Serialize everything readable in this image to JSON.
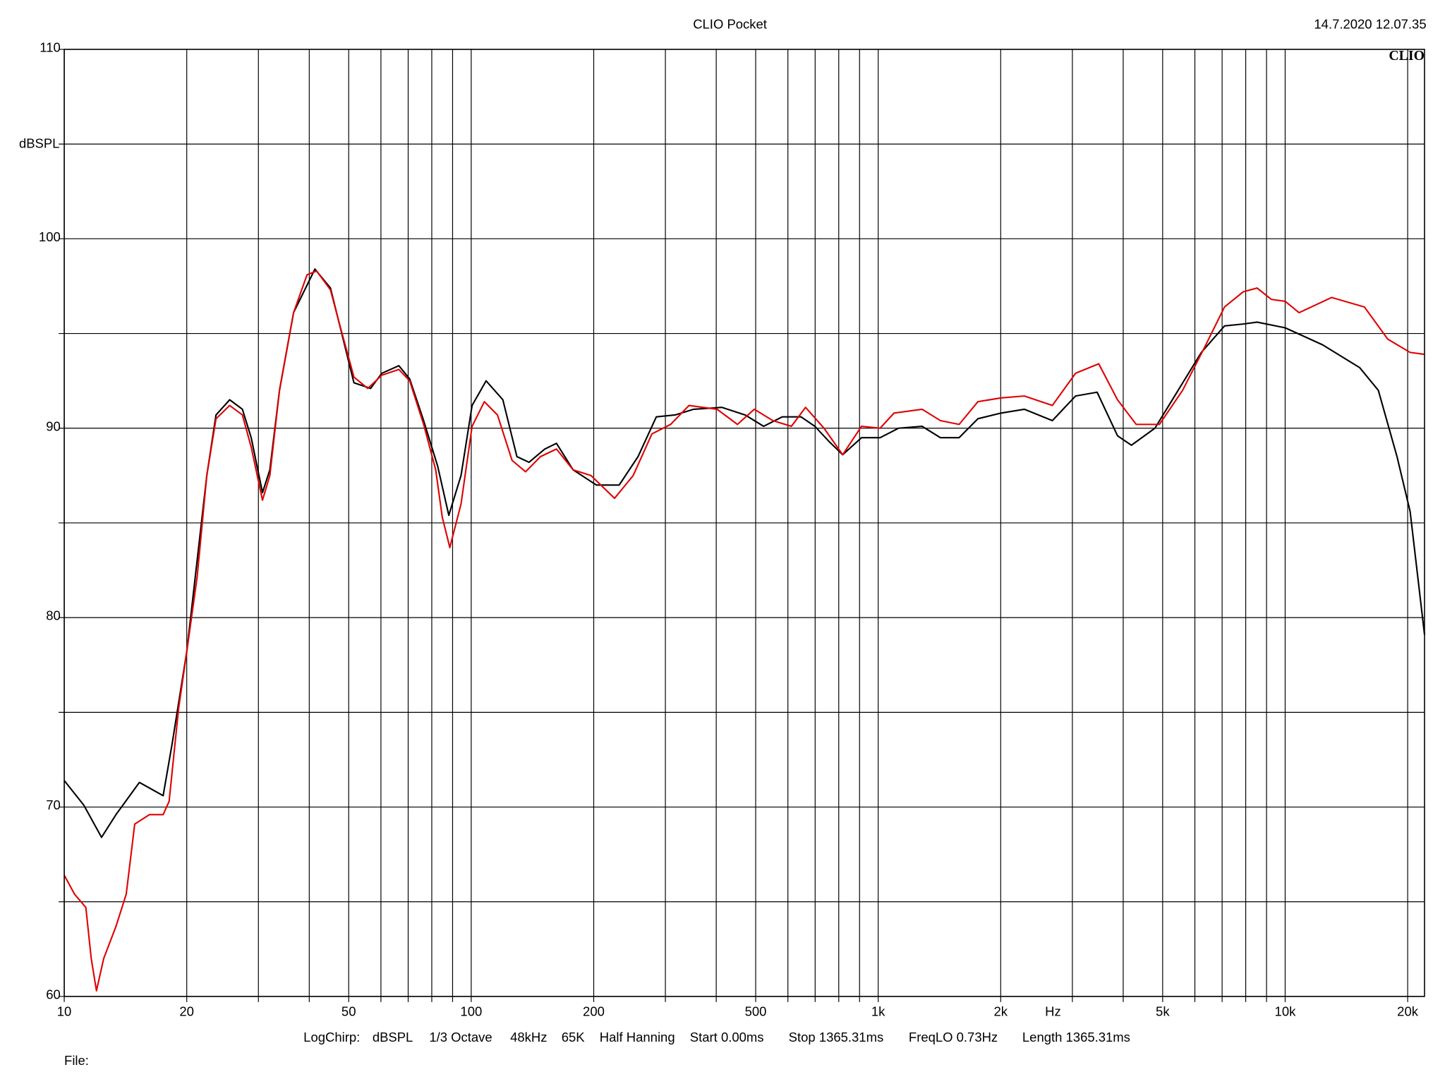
{
  "chart_data": {
    "type": "line",
    "title": "CLIO Pocket",
    "timestamp": "14.7.2020 12.07.35",
    "logo": "CLIO",
    "ylabel": "dBSPL",
    "xlabel": "Hz",
    "footer": [
      "LogChirp:",
      "dBSPL",
      "1/3 Octave",
      "48kHz",
      "65K",
      "Half Hanning",
      "Start 0.00ms",
      "Stop 1365.31ms",
      "FreqLO 0.73Hz",
      "Length 1365.31ms"
    ],
    "file_label": "File:",
    "xscale": "log",
    "grid": true,
    "xlim": [
      10,
      22000
    ],
    "ylim": [
      60,
      110
    ],
    "xticks": [
      10,
      20,
      50,
      100,
      200,
      500,
      {
        "value": 1000,
        "label": "1k"
      },
      {
        "value": 2000,
        "label": "2k"
      },
      {
        "value": 5000,
        "label": "5k"
      },
      {
        "value": 10000,
        "label": "10k"
      },
      {
        "value": 20000,
        "label": "20k"
      }
    ],
    "x_minor_ticks": [
      30,
      40,
      60,
      70,
      80,
      90,
      300,
      400,
      600,
      700,
      800,
      900,
      3000,
      4000,
      6000,
      7000,
      8000,
      9000
    ],
    "yticks": [
      60,
      70,
      80,
      90,
      100,
      110
    ],
    "y_minor_ticks": [
      65,
      75,
      85,
      95,
      105
    ],
    "series": [
      {
        "color": "#000000",
        "x": [
          10,
          11.17,
          12.35,
          13.4,
          15.3,
          17.5,
          18.4,
          20,
          22.4,
          23.6,
          25.5,
          27.4,
          28.8,
          30.7,
          32,
          33.8,
          36.6,
          41.3,
          45.1,
          51.5,
          56.6,
          60.3,
          66.4,
          70.6,
          76.4,
          82.7,
          88.1,
          94.4,
          100.5,
          108.8,
          119.6,
          129.5,
          138.7,
          151.6,
          162,
          178,
          203,
          231,
          257,
          285,
          317,
          352,
          413,
          471,
          523,
          581,
          646,
          699,
          757,
          818,
          910,
          1011,
          1122,
          1282,
          1422,
          1581,
          1758,
          2005,
          2286,
          2679,
          3055,
          3451,
          3873,
          4190,
          4786,
          5458,
          6223,
          7096,
          7889,
          8531,
          10000,
          12360,
          15240,
          16940,
          18830,
          20280,
          22000
        ],
        "values": [
          71.4,
          70.1,
          68.4,
          69.6,
          71.3,
          70.6,
          73.3,
          78.2,
          87.5,
          90.7,
          91.5,
          91,
          89.5,
          86.6,
          87.8,
          92,
          96.1,
          98.4,
          97.4,
          92.4,
          92.1,
          92.9,
          93.3,
          92.6,
          90.4,
          88,
          85.4,
          87.5,
          91.2,
          92.5,
          91.5,
          88.5,
          88.2,
          88.9,
          89.2,
          87.8,
          87,
          87,
          88.5,
          90.6,
          90.7,
          91,
          91.1,
          90.7,
          90.1,
          90.6,
          90.6,
          90.1,
          89.3,
          88.6,
          89.5,
          89.5,
          90,
          90.1,
          89.5,
          89.5,
          90.5,
          90.8,
          91,
          90.4,
          91.7,
          91.9,
          89.6,
          89.1,
          90,
          92,
          94,
          95.4,
          95.5,
          95.6,
          95.3,
          94.4,
          93.2,
          92,
          88.5,
          85.6,
          79.1
        ]
      },
      {
        "color": "#e00000",
        "x": [
          10,
          10.6,
          11.3,
          11.65,
          12,
          12.5,
          13.4,
          14.2,
          14.9,
          16.2,
          17.5,
          18.1,
          19.1,
          20,
          21.2,
          22.4,
          23.6,
          25.5,
          27.4,
          28.8,
          30.7,
          32,
          33.8,
          36.6,
          39.5,
          41.7,
          45.1,
          47.6,
          51.5,
          55.7,
          60.3,
          66.4,
          70.6,
          76.4,
          81.8,
          84.9,
          88.6,
          94.4,
          100.5,
          107.7,
          116,
          126,
          136,
          148,
          162,
          178,
          197,
          225,
          250,
          278,
          309,
          343,
          402,
          451,
          496,
          551,
          612,
          663,
          736,
          818,
          910,
          1011,
          1094,
          1282,
          1422,
          1581,
          1758,
          2005,
          2286,
          2679,
          3055,
          3483,
          3873,
          4305,
          4909,
          5598,
          6383,
          7096,
          7889,
          8531,
          9247,
          10000,
          10820,
          13000,
          15660,
          17870,
          20280,
          22000
        ],
        "values": [
          66.4,
          65.4,
          64.7,
          62,
          60.3,
          62,
          63.7,
          65.4,
          69.1,
          69.6,
          69.6,
          70.3,
          75.2,
          78.2,
          82.1,
          87.5,
          90.5,
          91.2,
          90.7,
          89,
          86.2,
          87.5,
          92,
          96.1,
          98.1,
          98.3,
          97.3,
          95.4,
          92.7,
          92.1,
          92.8,
          93.1,
          92.5,
          90.2,
          87.8,
          85.3,
          83.7,
          86,
          90.1,
          91.4,
          90.7,
          88.3,
          87.7,
          88.5,
          88.9,
          87.8,
          87.5,
          86.3,
          87.5,
          89.7,
          90.2,
          91.2,
          91,
          90.2,
          91,
          90.4,
          90.1,
          91.1,
          90,
          88.6,
          90.1,
          90,
          90.8,
          91,
          90.4,
          90.2,
          91.4,
          91.6,
          91.7,
          91.2,
          92.9,
          93.4,
          91.5,
          90.2,
          90.2,
          92,
          94.4,
          96.4,
          97.2,
          97.4,
          96.8,
          96.7,
          96.1,
          96.9,
          96.4,
          94.7,
          94,
          93.9
        ]
      }
    ]
  }
}
